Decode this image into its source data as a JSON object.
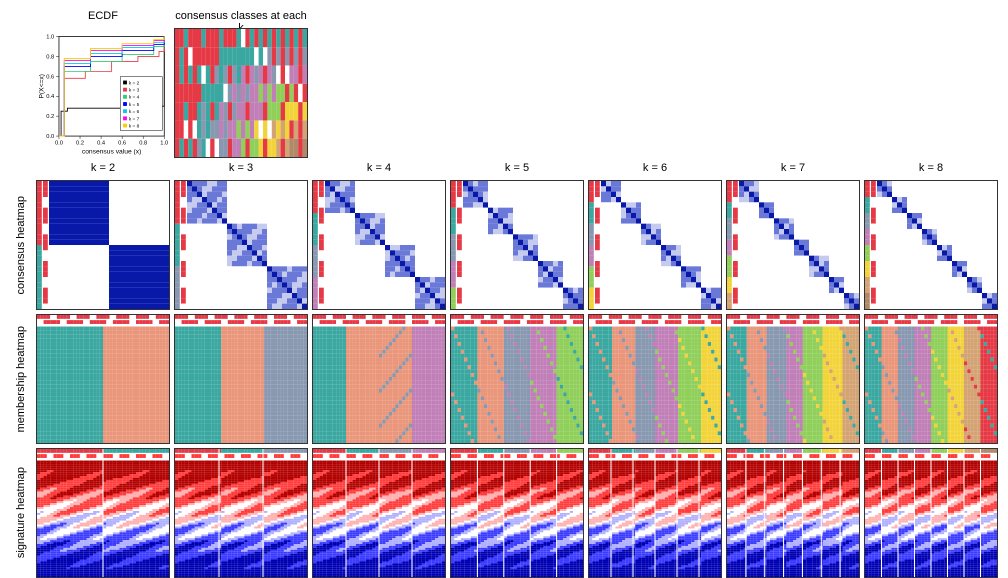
{
  "titles": {
    "ecdf": "ECDF",
    "consensus_classes": "consensus classes at each k",
    "k": [
      "k = 2",
      "k = 3",
      "k = 4",
      "k = 5",
      "k = 6",
      "k = 7",
      "k = 8"
    ]
  },
  "row_labels": {
    "consensus": "consensus heatmap",
    "membership": "membership heatmap",
    "signature": "signature heatmap"
  },
  "ecdf": {
    "xlabel": "consensus value (x)",
    "ylabel": "P(X<=x)",
    "xlim": [
      0,
      1
    ],
    "ylim": [
      0,
      1
    ],
    "xticks": [
      0.0,
      0.2,
      0.4,
      0.6,
      0.8,
      1.0
    ],
    "yticks": [
      0.0,
      0.2,
      0.4,
      0.6,
      0.8,
      1.0
    ],
    "legend_labels": [
      "k = 2",
      "k = 3",
      "k = 4",
      "k = 5",
      "k = 6",
      "k = 7",
      "k = 8"
    ],
    "colors": [
      "#000000",
      "#e63946",
      "#2ecc71",
      "#0000ff",
      "#00c8f0",
      "#ff00ff",
      "#ffcc00"
    ],
    "curves": [
      [
        [
          0,
          0
        ],
        [
          0.02,
          0.25
        ],
        [
          0.08,
          0.28
        ],
        [
          0.95,
          0.3
        ],
        [
          1.0,
          1.0
        ]
      ],
      [
        [
          0,
          0
        ],
        [
          0.05,
          0.58
        ],
        [
          0.25,
          0.65
        ],
        [
          0.5,
          0.75
        ],
        [
          0.75,
          0.8
        ],
        [
          0.95,
          0.85
        ],
        [
          1.0,
          1.0
        ]
      ],
      [
        [
          0,
          0
        ],
        [
          0.05,
          0.65
        ],
        [
          0.3,
          0.75
        ],
        [
          0.6,
          0.82
        ],
        [
          0.9,
          0.9
        ],
        [
          1.0,
          1.0
        ]
      ],
      [
        [
          0,
          0
        ],
        [
          0.05,
          0.7
        ],
        [
          0.3,
          0.8
        ],
        [
          0.6,
          0.86
        ],
        [
          0.9,
          0.92
        ],
        [
          1.0,
          1.0
        ]
      ],
      [
        [
          0,
          0
        ],
        [
          0.05,
          0.73
        ],
        [
          0.3,
          0.83
        ],
        [
          0.6,
          0.89
        ],
        [
          0.9,
          0.94
        ],
        [
          1.0,
          1.0
        ]
      ],
      [
        [
          0,
          0
        ],
        [
          0.05,
          0.76
        ],
        [
          0.3,
          0.86
        ],
        [
          0.6,
          0.91
        ],
        [
          0.9,
          0.96
        ],
        [
          1.0,
          1.0
        ]
      ],
      [
        [
          0,
          0
        ],
        [
          0.05,
          0.78
        ],
        [
          0.3,
          0.88
        ],
        [
          0.6,
          0.93
        ],
        [
          0.9,
          0.97
        ],
        [
          1.0,
          1.0
        ]
      ]
    ],
    "tick_fontsize": 6,
    "label_fontsize": 7,
    "legend_fontsize": 5
  },
  "class_colors": [
    "#e63946",
    "#3aa8a0",
    "#8898b0",
    "#c17fb8",
    "#8fcf5a",
    "#f2d43a",
    "#d4a373",
    "#b08968"
  ],
  "consensus_classes_panel": {
    "rows": 7,
    "cols": 30,
    "white": "#ffffff"
  },
  "heatmap": {
    "colors": {
      "darkblue": "#0818a8",
      "midblue": "#6a78d8",
      "lightblue": "#c5caef",
      "white": "#ffffff",
      "lightred": "#f2a0a0",
      "red": "#e63946"
    }
  },
  "membership_colors": {
    "teal": "#3aa8a0",
    "salmon": "#e9967a",
    "grayblue": "#8898b0",
    "purple": "#c17fb8",
    "green": "#8fcf5a",
    "yellow": "#f2d43a",
    "tan": "#d4a373",
    "red": "#e63946",
    "white": "#ffffff"
  },
  "signature_colors": {
    "darkred": "#b30000",
    "red": "#ff3b3b",
    "lightred": "#ffb0b0",
    "white": "#ffffff",
    "lightblue": "#b0b0ff",
    "blue": "#3b3bff",
    "darkblue": "#0000b3"
  },
  "axis_fontsize": 6
}
